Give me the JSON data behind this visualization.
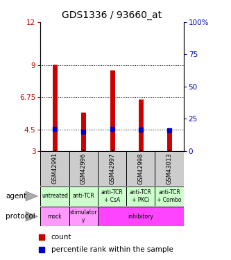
{
  "title": "GDS1336 / 93660_at",
  "samples": [
    "GSM42991",
    "GSM42996",
    "GSM42997",
    "GSM42998",
    "GSM43013"
  ],
  "bar_bottoms": [
    3,
    3,
    3,
    3,
    3
  ],
  "bar_tops": [
    9.05,
    5.7,
    8.65,
    6.6,
    4.55
  ],
  "blue_marks": [
    4.55,
    4.35,
    4.55,
    4.5,
    4.45
  ],
  "ylim_left": [
    3,
    12
  ],
  "yticks_left": [
    3,
    4.5,
    6.75,
    9,
    12
  ],
  "ytick_labels_left": [
    "3",
    "4.5",
    "6.75",
    "9",
    "12"
  ],
  "ylim_right": [
    0,
    100
  ],
  "yticks_right": [
    0,
    25,
    50,
    75,
    100
  ],
  "ytick_labels_right": [
    "0",
    "25",
    "50",
    "75",
    "100%"
  ],
  "bar_color": "#cc0000",
  "blue_color": "#0000cc",
  "agent_labels": [
    "untreated",
    "anti-TCR",
    "anti-TCR\n+ CsA",
    "anti-TCR\n+ PKCi",
    "anti-TCR\n+ Combo"
  ],
  "sample_bg_color": "#cccccc",
  "agent_bg_color": "#ccffcc",
  "mock_color": "#ff99ff",
  "stimulatory_color": "#ff99ff",
  "inhibitory_color": "#ff44ff",
  "left_label_color": "#cc0000",
  "right_label_color": "#0000cc",
  "legend_count_color": "#cc0000",
  "legend_pct_color": "#0000cc",
  "fig_width": 3.33,
  "fig_height": 3.75,
  "dpi": 100
}
